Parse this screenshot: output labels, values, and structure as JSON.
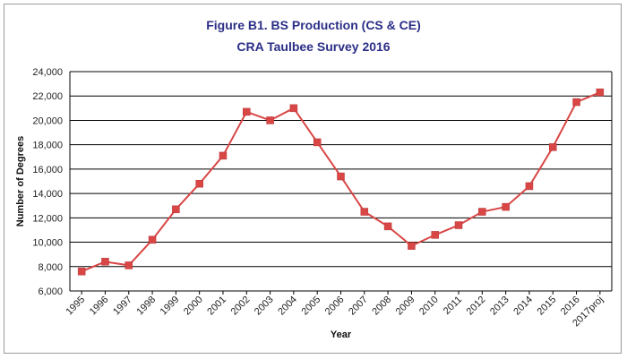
{
  "chart_data": {
    "type": "line",
    "title": "Figure B1. BS Production (CS & CE)",
    "subtitle": "CRA Taulbee Survey 2016",
    "xlabel": "Year",
    "ylabel": "Number of Degrees",
    "ylim": [
      6000,
      24000
    ],
    "ytick_step": 2000,
    "grid": true,
    "categories": [
      "1995",
      "1996",
      "1997",
      "1998",
      "1999",
      "2000",
      "2001",
      "2002",
      "2003",
      "2004",
      "2005",
      "2006",
      "2007",
      "2008",
      "2009",
      "2010",
      "2011",
      "2012",
      "2013",
      "2014",
      "2015",
      "2016",
      "2017proj"
    ],
    "series": [
      {
        "values": [
          7600,
          8400,
          8100,
          10200,
          12700,
          14800,
          17100,
          20700,
          20000,
          21000,
          18200,
          15400,
          12500,
          11300,
          9700,
          10600,
          11400,
          12500,
          12900,
          14600,
          17800,
          21500,
          22300
        ],
        "color": "#d94646"
      }
    ]
  }
}
